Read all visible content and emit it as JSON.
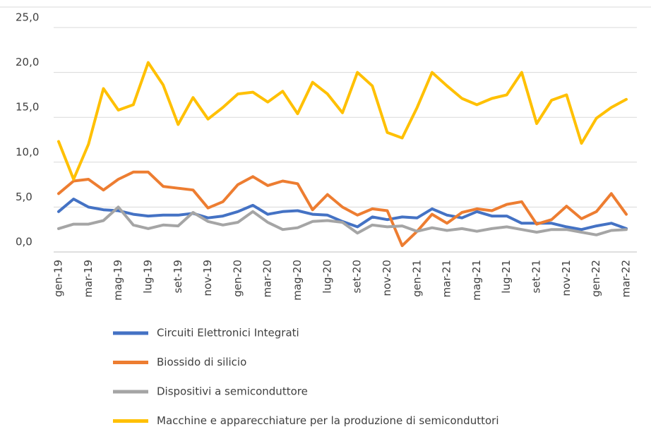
{
  "chart_data": {
    "type": "line",
    "categories": [
      "gen-19",
      null,
      "mar-19",
      null,
      "mag-19",
      null,
      "lug-19",
      null,
      "set-19",
      null,
      "nov-19",
      null,
      "gen-20",
      null,
      "mar-20",
      null,
      "mag-20",
      null,
      "lug-20",
      null,
      "set-20",
      null,
      "nov-20",
      null,
      "gen-21",
      null,
      "mar-21",
      null,
      "mag-21",
      null,
      "lug-21",
      null,
      "set-21",
      null,
      "nov-21",
      null,
      "gen-22",
      null,
      "mar-22"
    ],
    "series": [
      {
        "name": "Circuiti Elettronici Integrati",
        "color": "#4472c4",
        "values": [
          4.5,
          5.9,
          5.0,
          4.7,
          4.6,
          4.2,
          4.0,
          4.1,
          4.1,
          4.3,
          3.8,
          4.0,
          4.5,
          5.2,
          4.2,
          4.5,
          4.6,
          4.2,
          4.1,
          3.4,
          2.8,
          3.9,
          3.6,
          3.9,
          3.8,
          4.8,
          4.1,
          3.8,
          4.5,
          4.0,
          4.0,
          3.2,
          3.2,
          3.2,
          2.8,
          2.5,
          2.9,
          3.2,
          2.6
        ]
      },
      {
        "name": "Biossido di silicio",
        "color": "#ed7d31",
        "values": [
          6.5,
          7.9,
          8.1,
          6.9,
          8.1,
          8.9,
          8.9,
          7.3,
          7.1,
          6.9,
          4.9,
          5.6,
          7.5,
          8.4,
          7.4,
          7.9,
          7.6,
          4.7,
          6.4,
          5.0,
          4.1,
          4.8,
          4.6,
          0.7,
          2.3,
          4.2,
          3.2,
          4.4,
          4.8,
          4.6,
          5.3,
          5.6,
          3.1,
          3.6,
          5.1,
          3.7,
          4.5,
          6.5,
          4.2
        ]
      },
      {
        "name": "Dispositivi a semiconduttore",
        "color": "#a5a5a5",
        "values": [
          2.6,
          3.1,
          3.1,
          3.5,
          5.0,
          3.0,
          2.6,
          3.0,
          2.9,
          4.4,
          3.4,
          3.0,
          3.3,
          4.5,
          3.3,
          2.5,
          2.7,
          3.4,
          3.5,
          3.3,
          2.1,
          3.0,
          2.8,
          2.9,
          2.3,
          2.7,
          2.4,
          2.6,
          2.3,
          2.6,
          2.8,
          2.5,
          2.2,
          2.5,
          2.5,
          2.2,
          1.9,
          2.4,
          2.5
        ]
      },
      {
        "name": "Macchine e apparecchiature per la produzione di semiconduttori",
        "color": "#ffc000",
        "values": [
          12.3,
          8.1,
          12.0,
          18.2,
          15.8,
          16.4,
          21.1,
          18.6,
          14.2,
          17.2,
          14.8,
          16.1,
          17.6,
          17.8,
          16.7,
          17.9,
          15.4,
          18.9,
          17.6,
          15.5,
          20.0,
          18.5,
          13.3,
          12.7,
          16.1,
          20.0,
          18.5,
          17.1,
          16.4,
          17.1,
          17.5,
          20.0,
          14.3,
          16.9,
          17.5,
          12.1,
          14.9,
          16.1,
          17.0
        ]
      }
    ],
    "ylim": [
      0,
      25
    ],
    "yticks": [
      {
        "value": 0,
        "label": "0,0"
      },
      {
        "value": 5,
        "label": "5,0"
      },
      {
        "value": 10,
        "label": "10,0"
      },
      {
        "value": 15,
        "label": "15,0"
      },
      {
        "value": 20,
        "label": "20,0"
      },
      {
        "value": 25,
        "label": "25,0"
      }
    ],
    "grid": true,
    "legend": "bottom"
  }
}
